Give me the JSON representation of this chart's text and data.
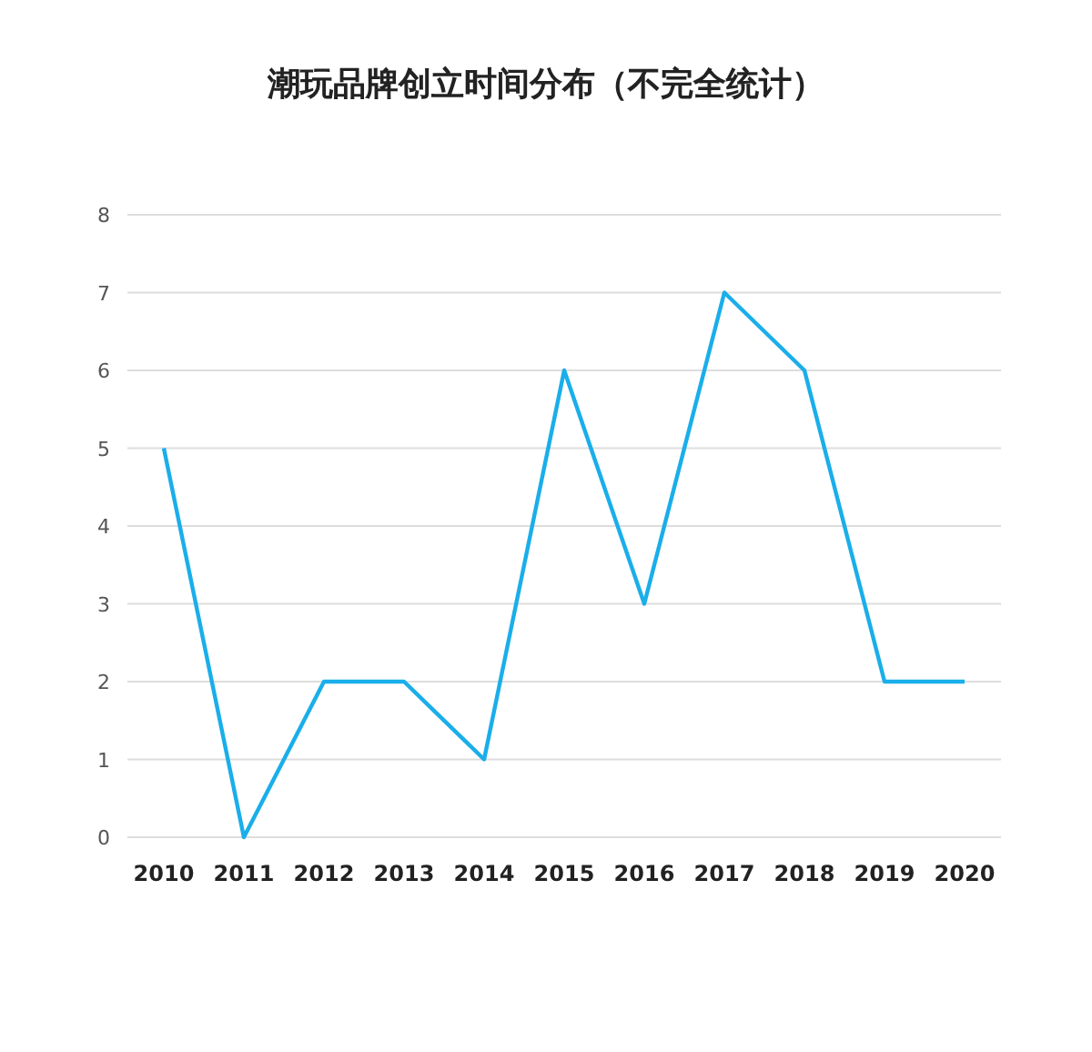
{
  "chart_data": {
    "type": "line",
    "title": "潮玩品牌创立时间分布（不完全统计）",
    "categories": [
      "2010",
      "2011",
      "2012",
      "2013",
      "2014",
      "2015",
      "2016",
      "2017",
      "2018",
      "2019",
      "2020"
    ],
    "series": [
      {
        "color": "#1aaeea",
        "values": [
          5,
          0,
          2,
          2,
          1,
          6,
          3,
          7,
          6,
          2,
          2
        ]
      }
    ],
    "ylim": [
      0,
      8
    ],
    "yticks": [
      0,
      1,
      2,
      3,
      4,
      5,
      6,
      7,
      8
    ],
    "grid": "y",
    "marker": "none",
    "line_style": "solid"
  }
}
